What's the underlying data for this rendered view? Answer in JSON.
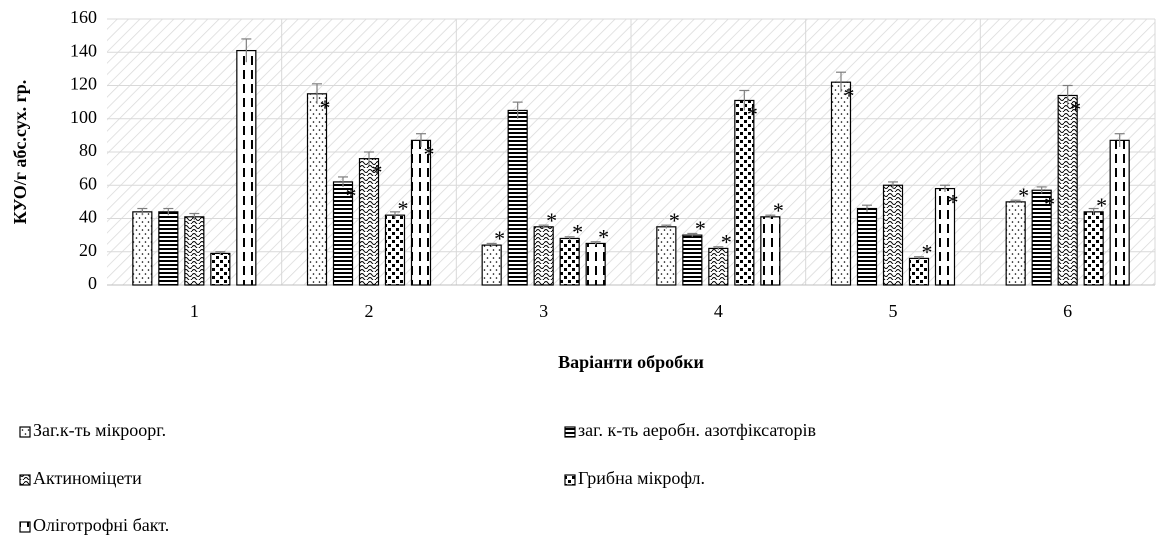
{
  "chart_data": {
    "type": "bar",
    "x_label": "Варіанти обробки",
    "y_label": "КУО/г абс.сух. гр.",
    "categories": [
      "1",
      "2",
      "3",
      "4",
      "5",
      "6"
    ],
    "ylim": [
      0,
      160
    ],
    "yticks": [
      0,
      20,
      40,
      60,
      80,
      100,
      120,
      140,
      160
    ],
    "grid": true,
    "significance_marker": "*",
    "series": [
      {
        "name": "Заг.к-ть мікроорг.",
        "color": "#000000",
        "pattern": "dots",
        "values": [
          44,
          115,
          24,
          35,
          122,
          50
        ],
        "errors": [
          2,
          6,
          1,
          1,
          6,
          1
        ],
        "significant": [
          false,
          true,
          true,
          true,
          true,
          true
        ]
      },
      {
        "name": "заг. к-ть аеробн. азотфіксаторів",
        "color": "#000000",
        "pattern": "hlines",
        "values": [
          44,
          62,
          105,
          30,
          46,
          57
        ],
        "errors": [
          2,
          3,
          5,
          1,
          2,
          2
        ],
        "significant": [
          false,
          true,
          false,
          true,
          false,
          true
        ]
      },
      {
        "name": "Актиноміцети",
        "color": "#000000",
        "pattern": "waves",
        "values": [
          41,
          76,
          35,
          22,
          60,
          114
        ],
        "errors": [
          2,
          4,
          1,
          1,
          2,
          6
        ],
        "significant": [
          false,
          true,
          true,
          true,
          false,
          true
        ]
      },
      {
        "name": "Грибна мікрофл.",
        "color": "#000000",
        "pattern": "bigdots",
        "values": [
          19,
          42,
          28,
          111,
          16,
          44
        ],
        "errors": [
          1,
          2,
          1,
          6,
          1,
          2
        ],
        "significant": [
          false,
          true,
          true,
          true,
          true,
          true
        ]
      },
      {
        "name": "Оліготрофні бакт.",
        "color": "#000000",
        "pattern": "vdash",
        "values": [
          141,
          87,
          25,
          41,
          58,
          87
        ],
        "errors": [
          7,
          4,
          1,
          1,
          2,
          4
        ],
        "significant": [
          false,
          true,
          true,
          true,
          true,
          false
        ]
      }
    ]
  }
}
